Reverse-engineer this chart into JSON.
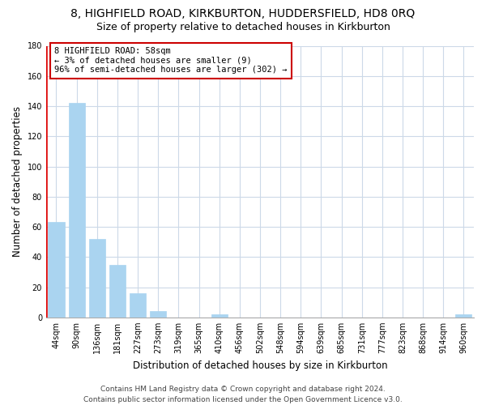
{
  "title": "8, HIGHFIELD ROAD, KIRKBURTON, HUDDERSFIELD, HD8 0RQ",
  "subtitle": "Size of property relative to detached houses in Kirkburton",
  "xlabel": "Distribution of detached houses by size in Kirkburton",
  "ylabel": "Number of detached properties",
  "bar_labels": [
    "44sqm",
    "90sqm",
    "136sqm",
    "181sqm",
    "227sqm",
    "273sqm",
    "319sqm",
    "365sqm",
    "410sqm",
    "456sqm",
    "502sqm",
    "548sqm",
    "594sqm",
    "639sqm",
    "685sqm",
    "731sqm",
    "777sqm",
    "823sqm",
    "868sqm",
    "914sqm",
    "960sqm"
  ],
  "bar_values": [
    63,
    142,
    52,
    35,
    16,
    4,
    0,
    0,
    2,
    0,
    0,
    0,
    0,
    0,
    0,
    0,
    0,
    0,
    0,
    0,
    2
  ],
  "bar_color": "#aad4f0",
  "highlight_color": "#dd0000",
  "annotation_title": "8 HIGHFIELD ROAD: 58sqm",
  "annotation_line1": "← 3% of detached houses are smaller (9)",
  "annotation_line2": "96% of semi-detached houses are larger (302) →",
  "annotation_box_color": "#ffffff",
  "annotation_box_edge_color": "#cc0000",
  "ylim": [
    0,
    180
  ],
  "yticks": [
    0,
    20,
    40,
    60,
    80,
    100,
    120,
    140,
    160,
    180
  ],
  "footer_line1": "Contains HM Land Registry data © Crown copyright and database right 2024.",
  "footer_line2": "Contains public sector information licensed under the Open Government Licence v3.0.",
  "background_color": "#ffffff",
  "grid_color": "#ccd9e8",
  "title_fontsize": 10,
  "subtitle_fontsize": 9,
  "axis_label_fontsize": 8.5,
  "tick_fontsize": 7,
  "footer_fontsize": 6.5
}
